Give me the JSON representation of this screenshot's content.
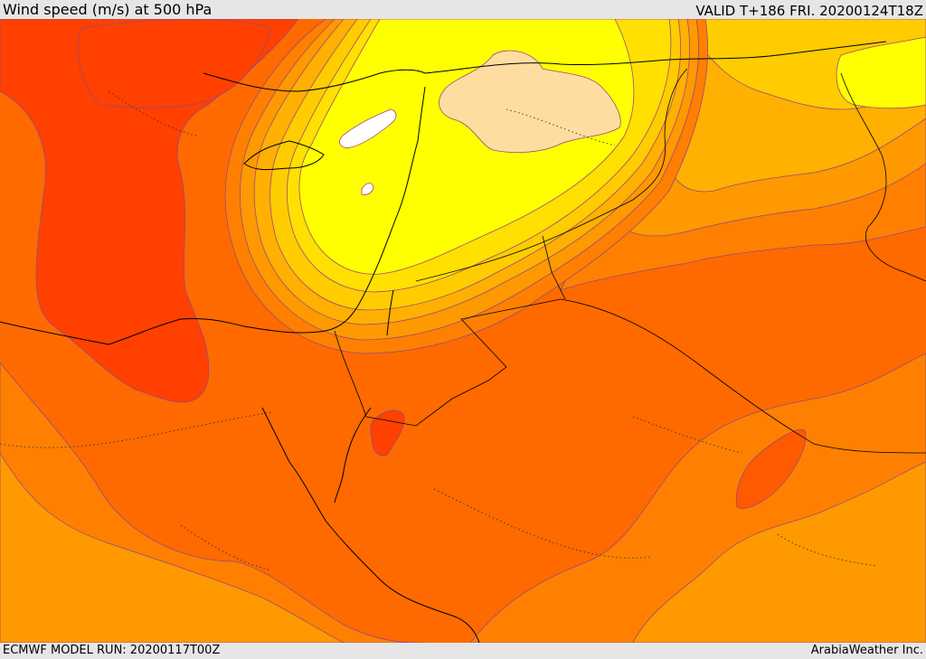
{
  "header": {
    "title": "Wind speed (m/s) at 500 hPa",
    "valid_time": "VALID T+186 FRI. 20200124T18Z"
  },
  "footer": {
    "model_run": "ECMWF MODEL RUN: 20200117T00Z",
    "credit": "ArabiaWeather Inc."
  },
  "map": {
    "field": "wind speed at 500 hPa",
    "colors": {
      "strongest": "#ff4000",
      "very_strong": "#ff5a00",
      "strong": "#ff6a00",
      "moderate_strong": "#ff8000",
      "moderate": "#ff9900",
      "moderate_weak": "#ffb000",
      "weak": "#ffcc00",
      "weaker": "#ffe000",
      "weakest": "#ffff00",
      "calm": "#ffdda0",
      "lightest": "#ffffff"
    }
  }
}
